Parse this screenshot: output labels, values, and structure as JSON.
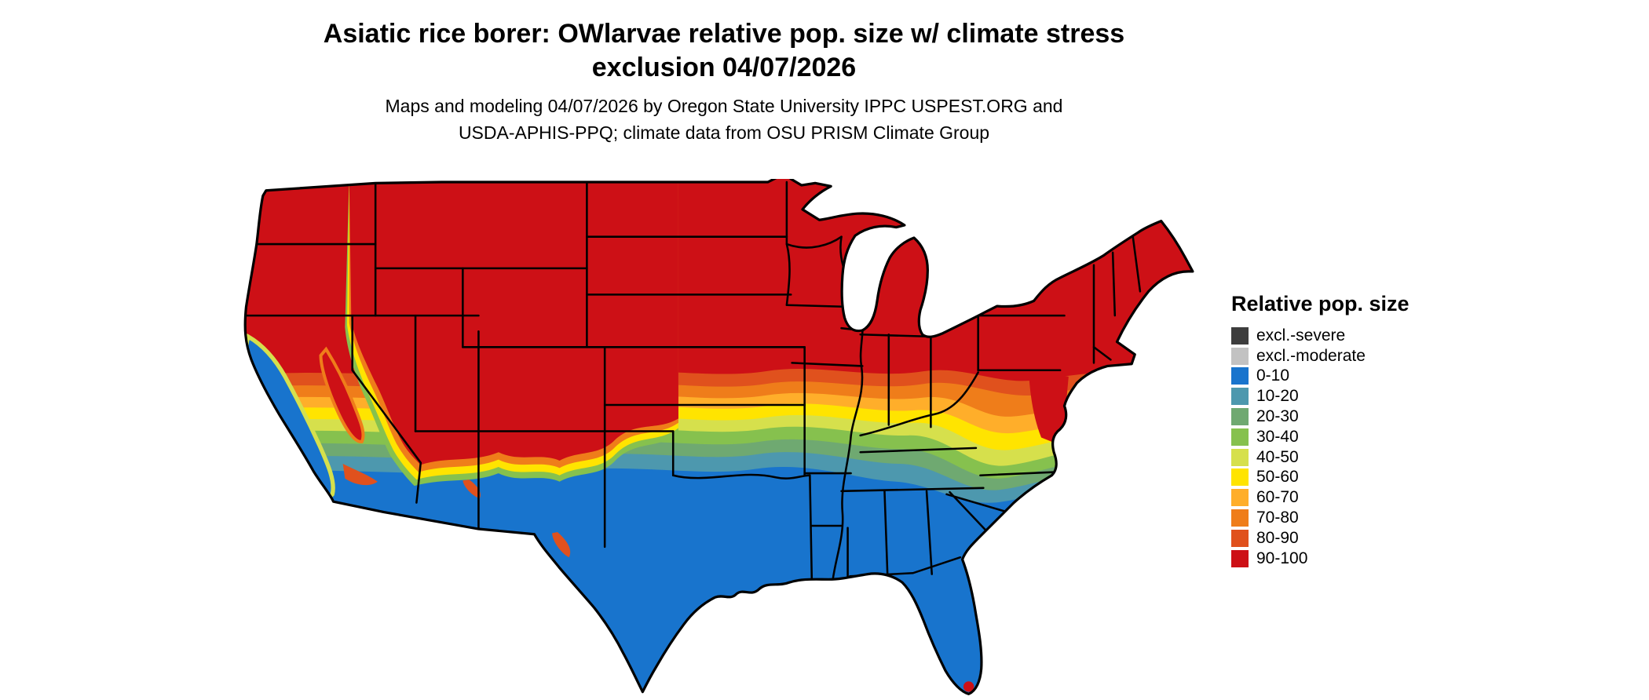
{
  "title": {
    "line1": "Asiatic rice borer: OWlarvae relative pop. size w/ climate stress",
    "line2": "exclusion 04/07/2026"
  },
  "subtitle": {
    "line1": "Maps and modeling 04/07/2026 by Oregon State University IPPC USPEST.ORG and",
    "line2": "USDA-APHIS-PPQ; climate data from OSU PRISM Climate Group"
  },
  "legend": {
    "title": "Relative pop. size",
    "items": [
      {
        "label": "excl.-severe",
        "color": "#3d3d3d"
      },
      {
        "label": "excl.-moderate",
        "color": "#c2c2c2"
      },
      {
        "label": "0-10",
        "color": "#1874cd"
      },
      {
        "label": "10-20",
        "color": "#4d98ae"
      },
      {
        "label": "20-30",
        "color": "#6fa971"
      },
      {
        "label": "30-40",
        "color": "#86c14e"
      },
      {
        "label": "40-50",
        "color": "#d6e04c"
      },
      {
        "label": "50-60",
        "color": "#ffe400"
      },
      {
        "label": "60-70",
        "color": "#ffae2a"
      },
      {
        "label": "70-80",
        "color": "#ef7d1a"
      },
      {
        "label": "80-90",
        "color": "#e0511d"
      },
      {
        "label": "90-100",
        "color": "#cd1016"
      }
    ]
  }
}
